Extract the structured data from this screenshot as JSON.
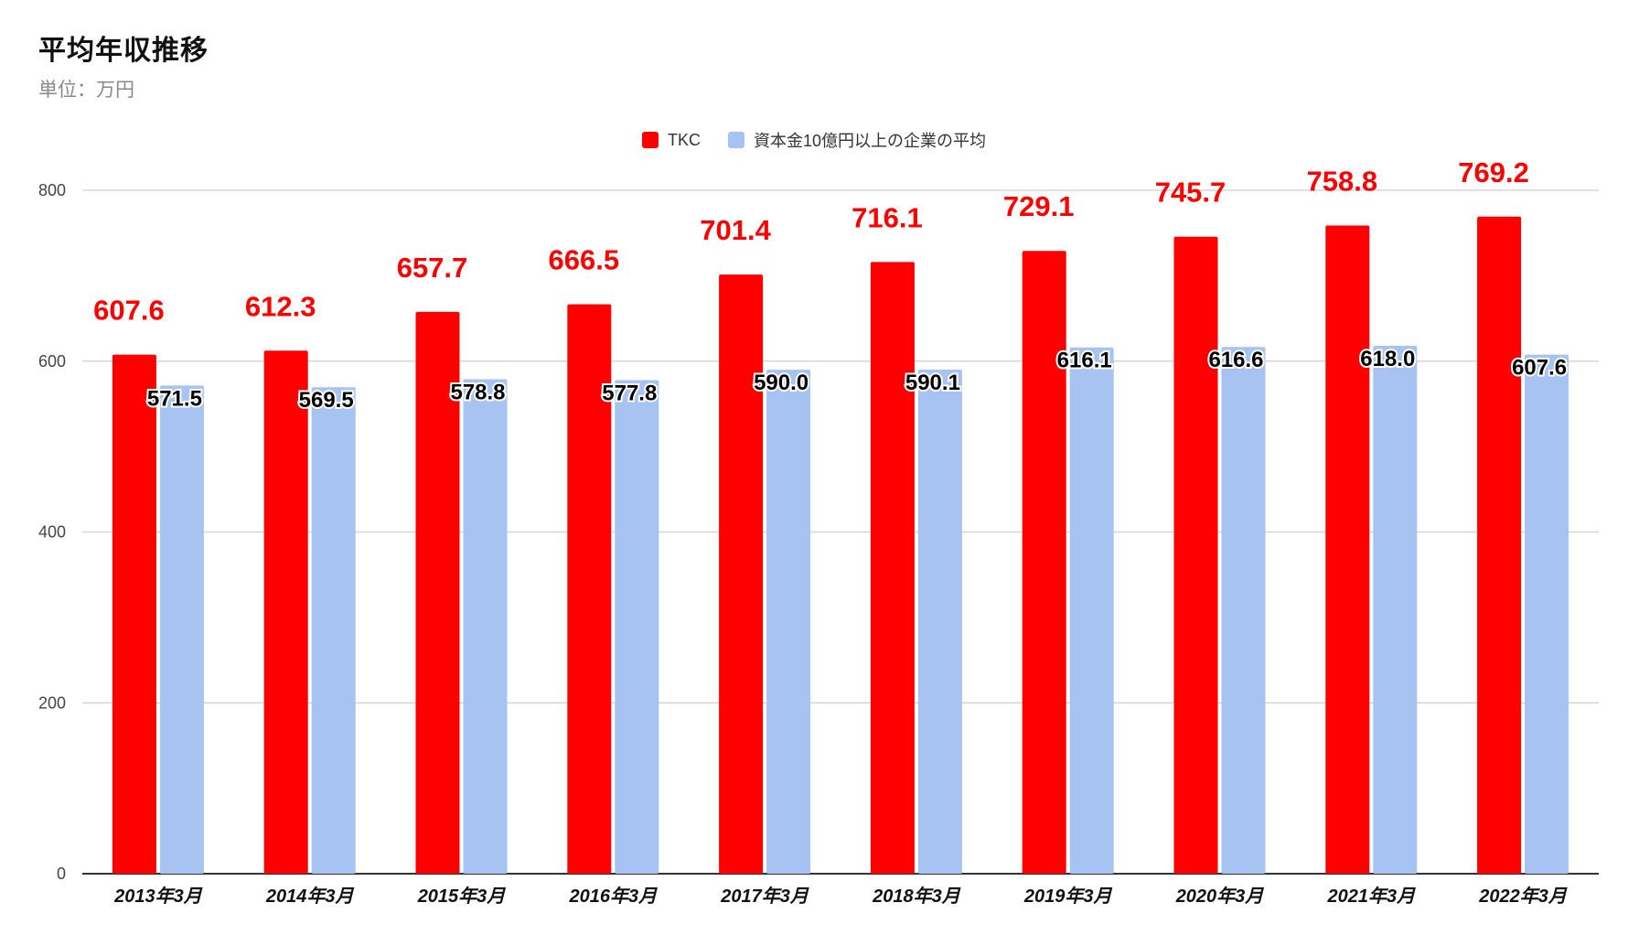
{
  "title": "平均年収推移",
  "subtitle": "単位：万円",
  "colors": {
    "series_a": "#ff0000",
    "series_b": "#a6c3f2",
    "grid": "#d6d6d6",
    "axis": "#333333"
  },
  "chart_data": {
    "type": "bar",
    "title": "平均年収推移",
    "subtitle": "単位：万円",
    "xlabel": "",
    "ylabel": "",
    "categories": [
      "2013年3月",
      "2014年3月",
      "2015年3月",
      "2016年3月",
      "2017年3月",
      "2018年3月",
      "2019年3月",
      "2020年3月",
      "2021年3月",
      "2022年3月"
    ],
    "series": [
      {
        "name": "TKC",
        "color": "#ff0000",
        "values": [
          607.6,
          612.3,
          657.7,
          666.5,
          701.4,
          716.1,
          729.1,
          745.7,
          758.8,
          769.2
        ]
      },
      {
        "name": "資本金10億円以上の企業の平均",
        "color": "#a6c3f2",
        "values": [
          571.5,
          569.5,
          578.8,
          577.8,
          590.0,
          590.1,
          616.1,
          616.6,
          618.0,
          607.6
        ]
      }
    ],
    "ylim": [
      0,
      800
    ],
    "yticks": [
      0,
      200,
      400,
      600,
      800
    ],
    "grid": true,
    "legend": "top-center",
    "data_labels": true
  }
}
